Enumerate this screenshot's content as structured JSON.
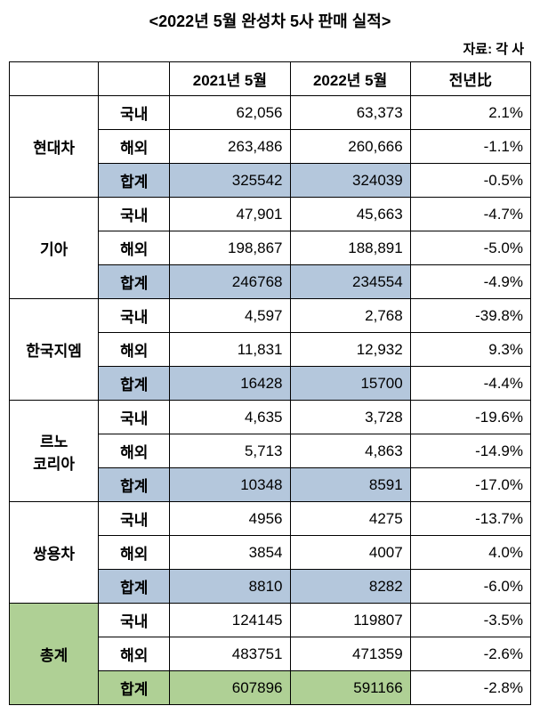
{
  "title": "<2022년 5월 완성차 5사 판매 실적>",
  "source": "자료: 각 사",
  "headers": {
    "col1": "",
    "col2": "",
    "y2021": "2021년 5월",
    "y2022": "2022년 5월",
    "yoy": "전년比"
  },
  "row_labels": {
    "domestic": "국내",
    "overseas": "해외",
    "subtotal": "합계"
  },
  "companies": [
    {
      "name": "현대차",
      "domestic": {
        "y2021": "62,056",
        "y2022": "63,373",
        "yoy": "2.1%"
      },
      "overseas": {
        "y2021": "263,486",
        "y2022": "260,666",
        "yoy": "-1.1%"
      },
      "subtotal": {
        "y2021": "325542",
        "y2022": "324039",
        "yoy": "-0.5%"
      }
    },
    {
      "name": "기아",
      "domestic": {
        "y2021": "47,901",
        "y2022": "45,663",
        "yoy": "-4.7%"
      },
      "overseas": {
        "y2021": "198,867",
        "y2022": "188,891",
        "yoy": "-5.0%"
      },
      "subtotal": {
        "y2021": "246768",
        "y2022": "234554",
        "yoy": "-4.9%"
      }
    },
    {
      "name": "한국지엠",
      "domestic": {
        "y2021": "4,597",
        "y2022": "2,768",
        "yoy": "-39.8%"
      },
      "overseas": {
        "y2021": "11,831",
        "y2022": "12,932",
        "yoy": "9.3%"
      },
      "subtotal": {
        "y2021": "16428",
        "y2022": "15700",
        "yoy": "-4.4%"
      }
    },
    {
      "name": "르노\n코리아",
      "domestic": {
        "y2021": "4,635",
        "y2022": "3,728",
        "yoy": "-19.6%"
      },
      "overseas": {
        "y2021": "5,713",
        "y2022": "4,863",
        "yoy": "-14.9%"
      },
      "subtotal": {
        "y2021": "10348",
        "y2022": "8591",
        "yoy": "-17.0%"
      }
    },
    {
      "name": "쌍용차",
      "domestic": {
        "y2021": "4956",
        "y2022": "4275",
        "yoy": "-13.7%"
      },
      "overseas": {
        "y2021": "3854",
        "y2022": "4007",
        "yoy": "4.0%"
      },
      "subtotal": {
        "y2021": "8810",
        "y2022": "8282",
        "yoy": "-6.0%"
      }
    }
  ],
  "total": {
    "name": "총계",
    "domestic": {
      "y2021": "124145",
      "y2022": "119807",
      "yoy": "-3.5%"
    },
    "overseas": {
      "y2021": "483751",
      "y2022": "471359",
      "yoy": "-2.6%"
    },
    "subtotal": {
      "y2021": "607896",
      "y2022": "591166",
      "yoy": "-2.8%"
    }
  },
  "colors": {
    "subtotal_bg": "#b4c7dc",
    "total_bg": "#afd095",
    "border": "#000000",
    "background": "#ffffff"
  }
}
